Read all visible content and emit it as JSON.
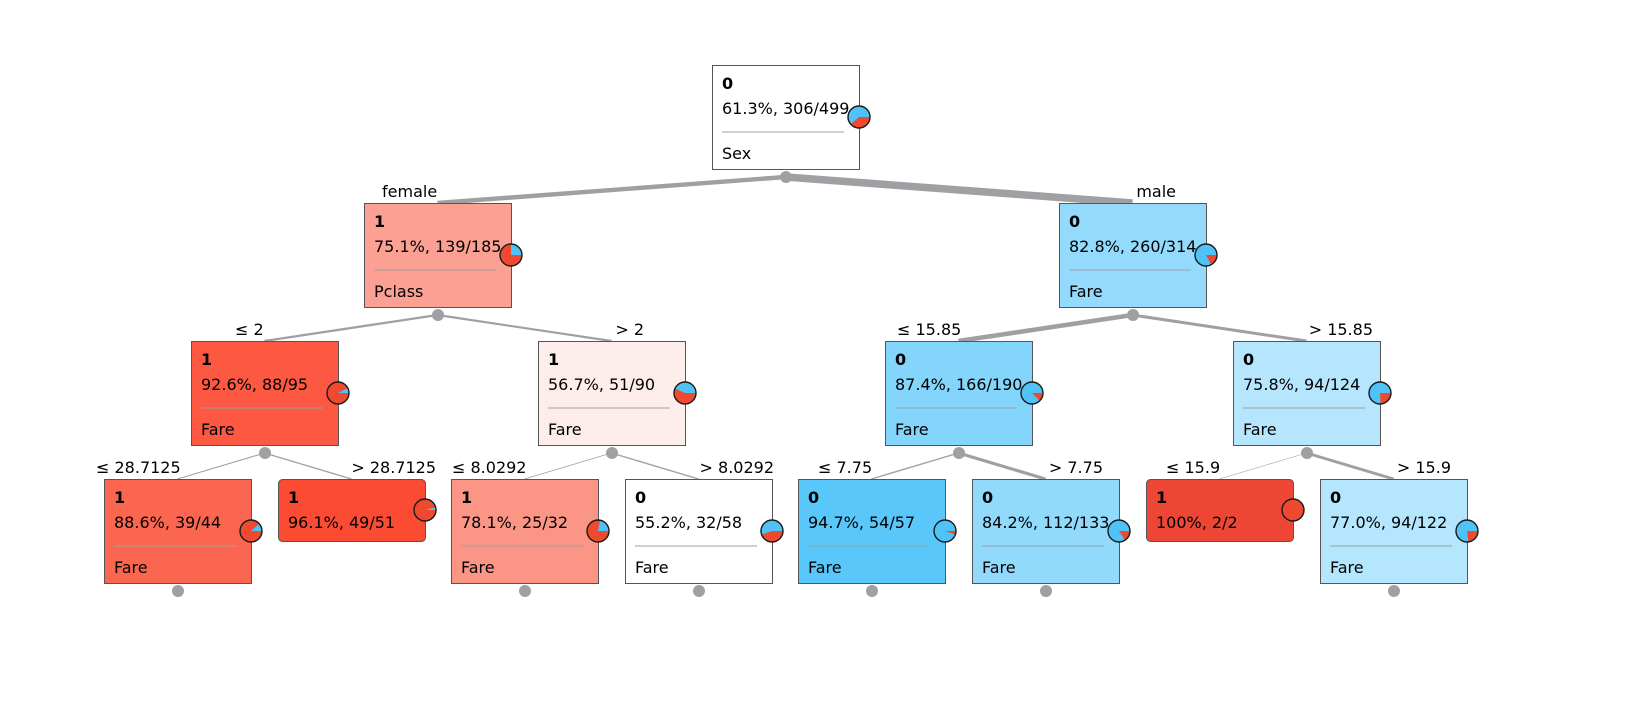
{
  "colors": {
    "class_0": "#4fc3f7",
    "class_1": "#ef4a30",
    "edge": "#a0a0a4",
    "separator": "#a0a0a4",
    "border": "#555555"
  },
  "nodes": [
    {
      "id": "root",
      "class": "0",
      "stats": "61.3%, 306/499",
      "split": "Sex",
      "fill": "#ffffff",
      "p1": 0.387
    },
    {
      "id": "n-female",
      "class": "1",
      "stats": "75.1%, 139/185",
      "split": "Pclass",
      "fill": "#fba092",
      "p1": 0.751
    },
    {
      "id": "n-male",
      "class": "0",
      "stats": "82.8%, 260/314",
      "split": "Fare",
      "fill": "#93dafc",
      "p1": 0.172
    },
    {
      "id": "n-pclass-le2",
      "class": "1",
      "stats": "92.6%, 88/95",
      "split": "Fare",
      "fill": "#fc5842",
      "p1": 0.926
    },
    {
      "id": "n-pclass-gt2",
      "class": "1",
      "stats": "56.7%, 51/90",
      "split": "Fare",
      "fill": "#fdedea",
      "p1": 0.567
    },
    {
      "id": "n-fare-le1585",
      "class": "0",
      "stats": "87.4%, 166/190",
      "split": "Fare",
      "fill": "#83d5fc",
      "p1": 0.126
    },
    {
      "id": "n-fare-gt1585",
      "class": "0",
      "stats": "75.8%, 94/124",
      "split": "Fare",
      "fill": "#b5e6fd",
      "p1": 0.242
    },
    {
      "id": "n-fare-le287125",
      "class": "1",
      "stats": "88.6%, 39/44",
      "split": "Fare",
      "fill": "#fb6650",
      "p1": 0.886
    },
    {
      "id": "n-fare-gt287125",
      "class": "1",
      "stats": "96.1%, 49/51",
      "split": "",
      "fill": "#fc4b33",
      "p1": 0.961
    },
    {
      "id": "n-fare-le80292",
      "class": "1",
      "stats": "78.1%, 25/32",
      "split": "Fare",
      "fill": "#fb9585",
      "p1": 0.781
    },
    {
      "id": "n-fare-gt80292",
      "class": "0",
      "stats": "55.2%, 32/58",
      "split": "Fare",
      "fill": "#ffffff",
      "p1": 0.448
    },
    {
      "id": "n-fare-le775",
      "class": "0",
      "stats": "94.7%, 54/57",
      "split": "Fare",
      "fill": "#5ac7fb",
      "p1": 0.053
    },
    {
      "id": "n-fare-gt775",
      "class": "0",
      "stats": "84.2%, 112/133",
      "split": "Fare",
      "fill": "#92dafc",
      "p1": 0.158
    },
    {
      "id": "n-fare-le159",
      "class": "1",
      "stats": "100%, 2/2",
      "split": "",
      "fill": "#ee4635",
      "p1": 1.0
    },
    {
      "id": "n-fare-gt159",
      "class": "0",
      "stats": "77.0%, 94/122",
      "split": "Fare",
      "fill": "#b4e6fd",
      "p1": 0.23
    }
  ],
  "edges": [
    {
      "from": "root",
      "to": "n-female",
      "label": "female",
      "weight": 185
    },
    {
      "from": "root",
      "to": "n-male",
      "label": "male",
      "weight": 314
    },
    {
      "from": "n-female",
      "to": "n-pclass-le2",
      "label": "≤ 2",
      "weight": 95
    },
    {
      "from": "n-female",
      "to": "n-pclass-gt2",
      "label": "> 2",
      "weight": 90
    },
    {
      "from": "n-male",
      "to": "n-fare-le1585",
      "label": "≤ 15.85",
      "weight": 190
    },
    {
      "from": "n-male",
      "to": "n-fare-gt1585",
      "label": "> 15.85",
      "weight": 124
    },
    {
      "from": "n-pclass-le2",
      "to": "n-fare-le287125",
      "label": "≤ 28.7125",
      "weight": 44
    },
    {
      "from": "n-pclass-le2",
      "to": "n-fare-gt287125",
      "label": "> 28.7125",
      "weight": 51
    },
    {
      "from": "n-pclass-gt2",
      "to": "n-fare-le80292",
      "label": "≤ 8.0292",
      "weight": 32
    },
    {
      "from": "n-pclass-gt2",
      "to": "n-fare-gt80292",
      "label": "> 8.0292",
      "weight": 58
    },
    {
      "from": "n-fare-le1585",
      "to": "n-fare-le775",
      "label": "≤ 7.75",
      "weight": 57
    },
    {
      "from": "n-fare-le1585",
      "to": "n-fare-gt775",
      "label": "> 7.75",
      "weight": 133
    },
    {
      "from": "n-fare-gt1585",
      "to": "n-fare-le159",
      "label": "≤ 15.9",
      "weight": 2
    },
    {
      "from": "n-fare-gt1585",
      "to": "n-fare-gt159",
      "label": "> 15.9",
      "weight": 122
    }
  ]
}
